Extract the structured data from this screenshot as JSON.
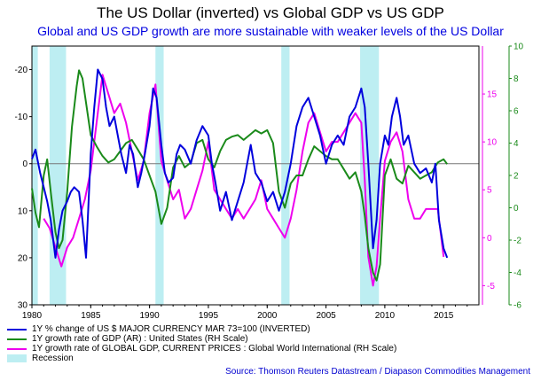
{
  "title": "The US Dollar (inverted) vs Global GDP vs US GDP",
  "subtitle": "Global and US GDP growth are more sustainable with weaker levels of the US Dollar",
  "source": "Source: Thomson Reuters Datastream / Diapason Commodities Management",
  "colors": {
    "usd": "#0000dd",
    "us_gdp": "#1a8a1a",
    "global_gdp": "#ee00ee",
    "recession": "#bdeef2",
    "zero_line": "#777777",
    "axis": "#000000"
  },
  "chart_data": {
    "type": "line",
    "x_ticks": [
      1980,
      1985,
      1990,
      1995,
      2000,
      2005,
      2010,
      2015
    ],
    "xlim": [
      1980,
      2018
    ],
    "left_axis": {
      "ylim": [
        30,
        -25
      ],
      "ticks": [
        "-20",
        "-10",
        "0",
        "10",
        "20",
        "30"
      ],
      "inverted": true
    },
    "right_axis_magenta": {
      "ylim": [
        -7,
        20
      ],
      "ticks": [
        "-5",
        "0",
        "5",
        "10",
        "15"
      ]
    },
    "right_axis_green": {
      "ylim": [
        -6,
        10
      ],
      "ticks": [
        "-6",
        "-4",
        "-2",
        "0",
        "2",
        "4",
        "6",
        "8",
        "10"
      ]
    },
    "recessions": [
      [
        1980.0,
        1980.5
      ],
      [
        1981.5,
        1982.9
      ],
      [
        1990.5,
        1991.2
      ],
      [
        2001.2,
        2001.9
      ],
      [
        2007.9,
        2009.5
      ]
    ],
    "series": [
      {
        "name": "1Y % change of US $ MAJOR CURRENCY MAR 73=100 (INVERTED)",
        "axis": "left",
        "x": [
          1980.0,
          1980.3,
          1980.7,
          1981.0,
          1981.3,
          1981.6,
          1982.0,
          1982.3,
          1982.6,
          1983.0,
          1983.3,
          1983.6,
          1984.0,
          1984.3,
          1984.6,
          1985.0,
          1985.3,
          1985.6,
          1986.0,
          1986.3,
          1986.6,
          1987.0,
          1987.3,
          1987.6,
          1988.0,
          1988.3,
          1988.6,
          1989.0,
          1989.3,
          1989.6,
          1990.0,
          1990.3,
          1990.6,
          1991.0,
          1991.3,
          1991.6,
          1992.0,
          1992.3,
          1992.6,
          1993.0,
          1993.5,
          1994.0,
          1994.5,
          1995.0,
          1995.3,
          1995.6,
          1996.0,
          1996.5,
          1997.0,
          1997.5,
          1998.0,
          1998.3,
          1998.6,
          1999.0,
          1999.5,
          2000.0,
          2000.5,
          2001.0,
          2001.5,
          2002.0,
          2002.5,
          2003.0,
          2003.5,
          2004.0,
          2004.5,
          2005.0,
          2005.5,
          2006.0,
          2006.5,
          2007.0,
          2007.5,
          2008.0,
          2008.3,
          2008.6,
          2009.0,
          2009.3,
          2009.6,
          2010.0,
          2010.3,
          2010.6,
          2011.0,
          2011.3,
          2011.6,
          2012.0,
          2012.5,
          2013.0,
          2013.5,
          2014.0,
          2014.3,
          2014.6,
          2015.0,
          2015.3
        ],
        "y": [
          -1,
          -3,
          2,
          5,
          8,
          12,
          20,
          14,
          10,
          8,
          6,
          5,
          6,
          12,
          20,
          -2,
          -12,
          -20,
          -18,
          -12,
          -8,
          -10,
          -6,
          -2,
          2,
          -4,
          -2,
          5,
          2,
          -2,
          -8,
          -16,
          -14,
          -4,
          2,
          4,
          3,
          -2,
          -4,
          -3,
          0,
          -5,
          -8,
          -6,
          0,
          4,
          10,
          6,
          12,
          8,
          4,
          0,
          -4,
          2,
          4,
          8,
          6,
          10,
          6,
          0,
          -8,
          -12,
          -14,
          -10,
          -6,
          0,
          -4,
          -6,
          -4,
          -10,
          -12,
          -16,
          -12,
          0,
          18,
          12,
          0,
          -6,
          -4,
          -10,
          -14,
          -10,
          -4,
          -6,
          0,
          2,
          1,
          4,
          0,
          12,
          18,
          20
        ]
      },
      {
        "name": "1Y growth rate of GDP (AR) : United States (RH Scale)",
        "axis": "right_green",
        "x": [
          1980.0,
          1980.3,
          1980.6,
          1981.0,
          1981.3,
          1981.6,
          1982.0,
          1982.3,
          1982.6,
          1983.0,
          1983.4,
          1983.8,
          1984.0,
          1984.3,
          1984.6,
          1985.0,
          1985.5,
          1986.0,
          1986.5,
          1987.0,
          1987.5,
          1988.0,
          1988.5,
          1989.0,
          1989.5,
          1990.0,
          1990.5,
          1991.0,
          1991.5,
          1992.0,
          1992.5,
          1993.0,
          1993.5,
          1994.0,
          1994.5,
          1995.0,
          1995.5,
          1996.0,
          1996.5,
          1997.0,
          1997.5,
          1998.0,
          1998.5,
          1999.0,
          1999.5,
          2000.0,
          2000.5,
          2001.0,
          2001.5,
          2002.0,
          2002.5,
          2003.0,
          2003.5,
          2004.0,
          2004.5,
          2005.0,
          2005.5,
          2006.0,
          2006.5,
          2007.0,
          2007.5,
          2008.0,
          2008.3,
          2008.6,
          2009.0,
          2009.3,
          2009.6,
          2010.0,
          2010.5,
          2011.0,
          2011.5,
          2012.0,
          2012.5,
          2013.0,
          2013.5,
          2014.0,
          2014.5,
          2015.0,
          2015.3
        ],
        "y": [
          1.2,
          -0.3,
          -1.2,
          2.0,
          3.0,
          1.0,
          -1.5,
          -2.5,
          -2.0,
          1.0,
          5.0,
          7.5,
          8.5,
          8.0,
          6.5,
          4.5,
          3.8,
          3.2,
          2.8,
          3.0,
          3.5,
          4.0,
          4.2,
          3.6,
          3.0,
          2.0,
          1.0,
          -1.0,
          0.0,
          2.5,
          3.2,
          2.5,
          2.8,
          4.0,
          4.2,
          3.0,
          2.5,
          3.5,
          4.2,
          4.4,
          4.5,
          4.2,
          4.5,
          4.8,
          4.6,
          4.8,
          4.0,
          1.0,
          0.0,
          1.5,
          2.0,
          2.0,
          3.0,
          3.8,
          3.5,
          3.2,
          3.0,
          3.0,
          2.4,
          1.8,
          2.2,
          1.0,
          -0.5,
          -2.5,
          -4.0,
          -4.5,
          -3.5,
          2.0,
          3.0,
          1.8,
          1.5,
          2.6,
          2.2,
          1.8,
          2.0,
          2.2,
          2.8,
          3.0,
          2.7
        ]
      },
      {
        "name": "1Y growth rate of GLOBAL GDP, CURRENT PRICES : Global World International (RH Scale)",
        "axis": "right_magenta",
        "x": [
          1981.0,
          1981.5,
          1982.0,
          1982.5,
          1983.0,
          1983.5,
          1984.0,
          1984.5,
          1985.0,
          1985.5,
          1986.0,
          1986.5,
          1987.0,
          1987.5,
          1988.0,
          1988.5,
          1989.0,
          1989.5,
          1990.0,
          1990.5,
          1991.0,
          1991.5,
          1992.0,
          1992.5,
          1993.0,
          1993.5,
          1994.0,
          1994.5,
          1995.0,
          1995.5,
          1996.0,
          1996.5,
          1997.0,
          1997.5,
          1998.0,
          1998.5,
          1999.0,
          1999.5,
          2000.0,
          2000.5,
          2001.0,
          2001.5,
          2002.0,
          2002.5,
          2003.0,
          2003.5,
          2004.0,
          2004.5,
          2005.0,
          2005.5,
          2006.0,
          2006.5,
          2007.0,
          2007.5,
          2008.0,
          2008.3,
          2008.6,
          2009.0,
          2009.3,
          2009.6,
          2010.0,
          2010.5,
          2011.0,
          2011.5,
          2012.0,
          2012.5,
          2013.0,
          2013.5,
          2014.0,
          2014.5,
          2015.0
        ],
        "y": [
          2.0,
          1.0,
          -1.0,
          -3.0,
          -1.0,
          0.0,
          2.0,
          4.0,
          7.0,
          12.0,
          17.0,
          15.0,
          13.0,
          14.0,
          12.0,
          9.0,
          6.0,
          8.0,
          13.0,
          16.0,
          8.0,
          6.0,
          4.0,
          5.0,
          2.0,
          3.0,
          5.0,
          7.0,
          10.0,
          5.0,
          4.0,
          3.0,
          2.0,
          3.0,
          2.0,
          3.0,
          4.0,
          6.0,
          3.0,
          2.0,
          1.0,
          0.0,
          2.0,
          5.0,
          9.0,
          12.0,
          13.0,
          11.0,
          9.0,
          10.0,
          10.0,
          11.0,
          12.0,
          13.0,
          12.0,
          6.0,
          -2.0,
          -5.0,
          -3.0,
          2.0,
          8.0,
          10.0,
          11.0,
          9.0,
          4.0,
          2.0,
          2.0,
          3.0,
          3.0,
          3.0,
          -2.0
        ]
      }
    ],
    "legend": [
      {
        "label": "1Y % change of US $ MAJOR CURRENCY MAR 73=100 (INVERTED)",
        "color": "#0000dd"
      },
      {
        "label": "1Y growth rate of GDP (AR) : United States (RH Scale)",
        "color": "#1a8a1a"
      },
      {
        "label": "1Y growth rate of GLOBAL GDP, CURRENT PRICES : Global World International (RH Scale)",
        "color": "#ee00ee"
      },
      {
        "label": "Recession",
        "color": "#bdeef2"
      }
    ]
  }
}
